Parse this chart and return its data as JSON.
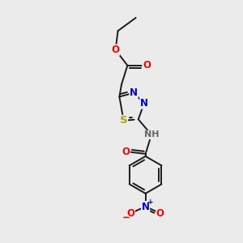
{
  "bg_color": "#ebebeb",
  "bond_color": "#1a1a1a",
  "bond_width": 1.4,
  "atom_colors": {
    "O": "#ff0000",
    "N": "#0000cc",
    "S": "#aaaa00",
    "H": "#666666",
    "C": "#1a1a1a"
  },
  "font_size": 8.5,
  "figsize": [
    3.0,
    3.0
  ],
  "dpi": 100
}
